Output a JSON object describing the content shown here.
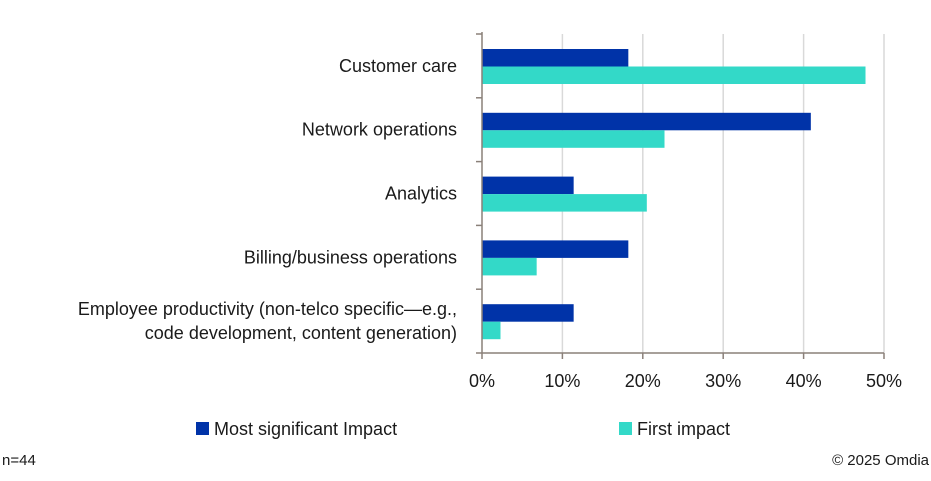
{
  "chart_data": {
    "type": "bar",
    "orientation": "horizontal",
    "categories": [
      [
        "Customer care"
      ],
      [
        "Network operations"
      ],
      [
        "Analytics"
      ],
      [
        "Billing/business operations"
      ],
      [
        "Employee productivity (non-telco specific—e.g.,",
        "code development, content generation)"
      ]
    ],
    "series": [
      {
        "name": "Most significant Impact",
        "color": "#0033A8",
        "values": [
          18.2,
          40.9,
          11.4,
          18.2,
          11.4
        ]
      },
      {
        "name": "First impact",
        "color": "#33D9C8",
        "values": [
          47.7,
          22.7,
          20.5,
          6.8,
          2.3
        ]
      }
    ],
    "xlim": [
      0,
      50
    ],
    "xticks": [
      "0%",
      "10%",
      "20%",
      "30%",
      "40%",
      "50%"
    ],
    "grid": true,
    "legend": "bottom"
  },
  "footer": {
    "n": "n=44",
    "copyright": "© 2025 Omdia"
  }
}
